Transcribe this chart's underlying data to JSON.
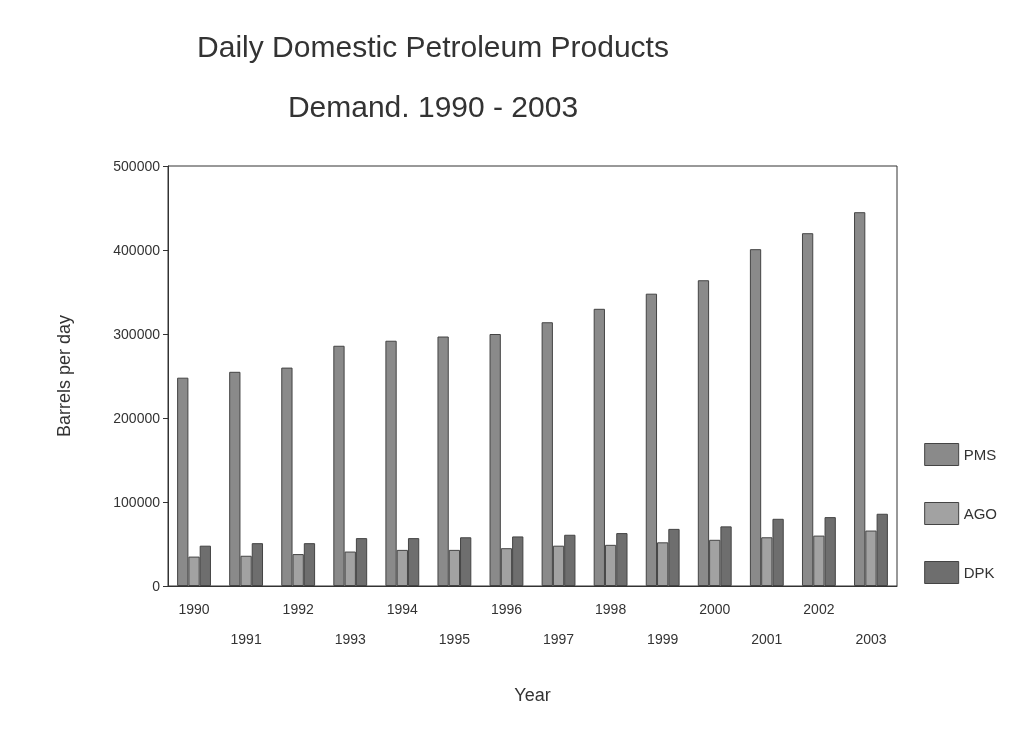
{
  "chart_data": {
    "type": "bar",
    "title": "Daily Domestic Petroleum Products\n\nDemand. 1990 - 2003",
    "xlabel": "Year",
    "ylabel": "Barrels per day",
    "categories": [
      "1990",
      "1991",
      "1992",
      "1993",
      "1994",
      "1995",
      "1996",
      "1997",
      "1998",
      "1999",
      "2000",
      "2001",
      "2002",
      "2003"
    ],
    "series": [
      {
        "name": "PMS",
        "color": "#8a8a8a",
        "values": [
          248000,
          255000,
          260000,
          286000,
          292000,
          297000,
          300000,
          314000,
          330000,
          348000,
          364000,
          401000,
          420000,
          445000
        ]
      },
      {
        "name": "AGO",
        "color": "#a2a2a2",
        "values": [
          35000,
          36000,
          38000,
          41000,
          43000,
          43000,
          45000,
          48000,
          49000,
          52000,
          55000,
          58000,
          60000,
          66000
        ]
      },
      {
        "name": "DPK",
        "color": "#6e6e6e",
        "values": [
          48000,
          51000,
          51000,
          57000,
          57000,
          58000,
          59000,
          61000,
          63000,
          68000,
          71000,
          80000,
          82000,
          86000
        ]
      }
    ],
    "ylim": [
      0,
      500000
    ],
    "yticks": [
      0,
      100000,
      200000,
      300000,
      400000,
      500000
    ],
    "grid": false,
    "legend": "right"
  }
}
